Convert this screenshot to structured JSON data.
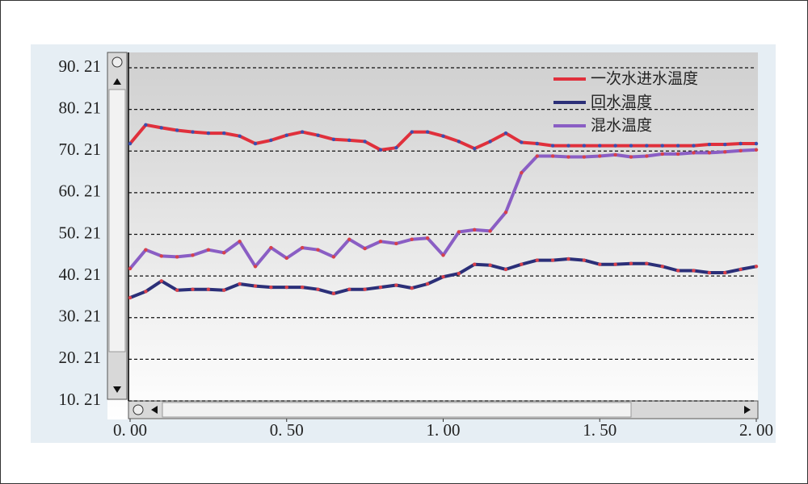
{
  "chart_data": {
    "type": "line",
    "x": [
      0,
      0.05,
      0.1,
      0.15,
      0.2,
      0.25,
      0.3,
      0.35,
      0.4,
      0.45,
      0.5,
      0.55,
      0.6,
      0.65,
      0.7,
      0.75,
      0.8,
      0.85,
      0.9,
      0.95,
      1.0,
      1.05,
      1.1,
      1.15,
      1.2,
      1.25,
      1.3,
      1.35,
      1.4,
      1.45,
      1.5,
      1.55,
      1.6,
      1.65,
      1.7,
      1.75,
      1.8,
      1.85,
      1.9,
      1.95,
      2.0
    ],
    "series": [
      {
        "name": "一次水进水温度",
        "color": "#e0303c",
        "marker_color": "#3a4fb0",
        "values": [
          72,
          76.5,
          75.8,
          75.2,
          74.8,
          74.5,
          74.5,
          73.8,
          72,
          72.8,
          74,
          74.8,
          74,
          73,
          72.8,
          72.5,
          70.5,
          71,
          74.8,
          74.8,
          73.8,
          72.5,
          70.8,
          72.5,
          74.5,
          72.3,
          72,
          71.5,
          71.5,
          71.5,
          71.5,
          71.5,
          71.5,
          71.5,
          71.5,
          71.5,
          71.5,
          71.8,
          71.8,
          72,
          72
        ]
      },
      {
        "name": "回水温度",
        "color": "#2b2f78",
        "marker_color": "#d8404a",
        "values": [
          35,
          36.5,
          39,
          36.8,
          37,
          37,
          36.8,
          38.3,
          37.8,
          37.5,
          37.5,
          37.5,
          37,
          36,
          37,
          37,
          37.5,
          38,
          37.3,
          38.3,
          40,
          40.8,
          43,
          42.8,
          41.8,
          43,
          44,
          44,
          44.3,
          44,
          43,
          43,
          43.2,
          43.2,
          42.5,
          41.5,
          41.5,
          41,
          41,
          41.8,
          42.5
        ]
      },
      {
        "name": "混水温度",
        "color": "#8a5ec4",
        "marker_color": "#d8404a",
        "values": [
          42,
          46.5,
          45,
          44.8,
          45.2,
          46.5,
          45.8,
          48.5,
          42.5,
          47,
          44.5,
          47,
          46.5,
          44.8,
          49,
          46.8,
          48.5,
          48,
          49,
          49.3,
          45.2,
          50.8,
          51.3,
          51,
          55.5,
          65,
          69,
          69,
          68.8,
          68.8,
          69,
          69.3,
          68.8,
          69,
          69.5,
          69.5,
          69.8,
          69.8,
          70,
          70.3,
          70.5
        ]
      }
    ],
    "xlim": [
      0,
      2
    ],
    "xticks": [
      {
        "value": 0,
        "label": "0. 00"
      },
      {
        "value": 0.5,
        "label": "0. 50"
      },
      {
        "value": 1,
        "label": "1. 00"
      },
      {
        "value": 1.5,
        "label": "1. 50"
      },
      {
        "value": 2,
        "label": "2. 00"
      }
    ],
    "ylim": [
      10.21,
      90.21
    ],
    "yticks": [
      {
        "value": 10.21,
        "label": "10. 21"
      },
      {
        "value": 20.21,
        "label": "20. 21"
      },
      {
        "value": 30.21,
        "label": "30. 21"
      },
      {
        "value": 40.21,
        "label": "40. 21"
      },
      {
        "value": 50.21,
        "label": "50. 21"
      },
      {
        "value": 60.21,
        "label": "60. 21"
      },
      {
        "value": 70.21,
        "label": "70. 21"
      },
      {
        "value": 80.21,
        "label": "80. 21"
      },
      {
        "value": 90.21,
        "label": "90. 21"
      }
    ],
    "grid": true,
    "legend": "upper right"
  }
}
